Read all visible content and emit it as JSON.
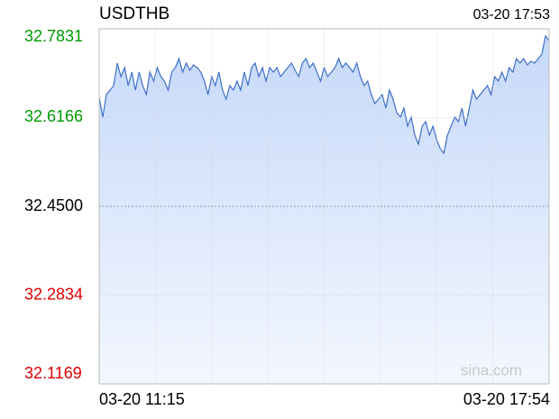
{
  "chart_data": {
    "type": "line",
    "title": "USDTHB",
    "timestamp": "03-20 17:53",
    "x_labels": [
      "03-20 11:15",
      "03-20 17:54"
    ],
    "watermark": "sina.com",
    "ylim": [
      32.1169,
      32.7831
    ],
    "yticks": [
      32.1169,
      32.2834,
      {
        "value": 32.45,
        "label": "32.4500"
      },
      32.6166,
      32.7831
    ],
    "up_color": "#009900",
    "flat_color": "#000000",
    "down_color": "#e00000",
    "grid": true,
    "series": [
      {
        "color": "#3f6fc9",
        "values": [
          32.6546,
          32.6174,
          32.6597,
          32.6681,
          32.6766,
          32.7189,
          32.6935,
          32.7104,
          32.6766,
          32.702,
          32.6681,
          32.702,
          32.6766,
          32.6597,
          32.702,
          32.685,
          32.7104,
          32.6935,
          32.685,
          32.6681,
          32.702,
          32.7104,
          32.7273,
          32.702,
          32.7189,
          32.7053,
          32.7155,
          32.7104,
          32.702,
          32.685,
          32.6597,
          32.6935,
          32.6766,
          32.702,
          32.6681,
          32.6512,
          32.6766,
          32.6681,
          32.685,
          32.6681,
          32.702,
          32.6766,
          32.7104,
          32.7189,
          32.6935,
          32.7104,
          32.685,
          32.7104,
          32.702,
          32.7104,
          32.6935,
          32.702,
          32.7104,
          32.7189,
          32.7053,
          32.6935,
          32.7189,
          32.7273,
          32.7104,
          32.7189,
          32.702,
          32.685,
          32.7104,
          32.6935,
          32.702,
          32.7104,
          32.7273,
          32.7104,
          32.7189,
          32.7104,
          32.702,
          32.7189,
          32.6935,
          32.6766,
          32.685,
          32.6597,
          32.6428,
          32.6512,
          32.6597,
          32.6343,
          32.6681,
          32.6512,
          32.6259,
          32.6174,
          32.6343,
          32.6005,
          32.6174,
          32.5836,
          32.5667,
          32.6005,
          32.609,
          32.5836,
          32.6005,
          32.5751,
          32.5582,
          32.5498,
          32.5836,
          32.6005,
          32.6174,
          32.609,
          32.6343,
          32.6005,
          32.6343,
          32.6681,
          32.6512,
          32.6597,
          32.6681,
          32.6766,
          32.6597,
          32.6935,
          32.685,
          32.702,
          32.685,
          32.7104,
          32.702,
          32.7273,
          32.7189,
          32.7273,
          32.7155,
          32.7223,
          32.7189,
          32.7273,
          32.7358,
          32.7696,
          32.7611
        ]
      }
    ]
  }
}
